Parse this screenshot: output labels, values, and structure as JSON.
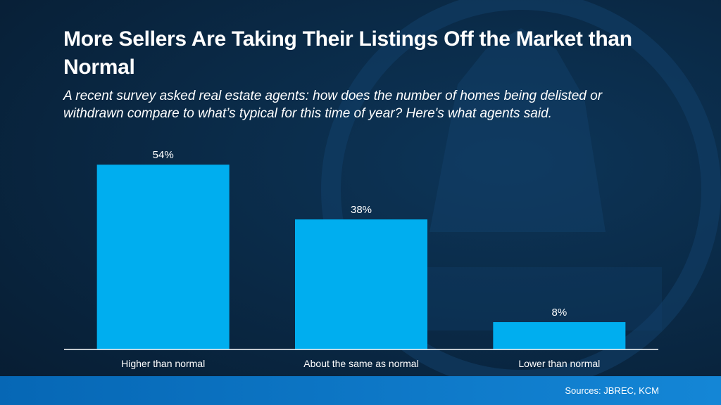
{
  "title": "More Sellers Are Taking Their Listings Off the Market than Normal",
  "subtitle": "A recent survey asked real estate agents: how does the number of homes being delisted or withdrawn compare to what’s typical for this time of year? Here's what agents said.",
  "source": "Sources: JBREC, KCM",
  "colors": {
    "bar": "#00AEEF",
    "axis": "#FFFFFF",
    "footer": "#0B72C4"
  },
  "chart_data": {
    "type": "bar",
    "categories": [
      "Higher than normal",
      "About the same as normal",
      "Lower than normal"
    ],
    "values": [
      54,
      38,
      8
    ],
    "data_labels": [
      "54%",
      "38%",
      "8%"
    ],
    "title": "",
    "xlabel": "",
    "ylabel": "",
    "ylim": [
      0,
      60
    ],
    "grid": false,
    "legend": "none"
  }
}
